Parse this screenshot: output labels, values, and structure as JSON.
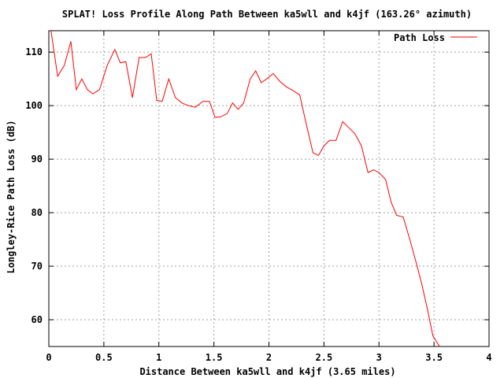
{
  "chart_data": {
    "type": "line",
    "title": "SPLAT! Loss Profile Along Path Between ka5wll and k4jf (163.26° azimuth)",
    "xlabel": "Distance Between ka5wll and k4jf (3.65 miles)",
    "ylabel": "Longley-Rice Path Loss (dB)",
    "xlim": [
      0,
      4
    ],
    "ylim": [
      55,
      114
    ],
    "x_ticks": [
      "0",
      "0.5",
      "1",
      "1.5",
      "2",
      "2.5",
      "3",
      "3.5",
      "4"
    ],
    "x_tick_values": [
      0,
      0.5,
      1,
      1.5,
      2,
      2.5,
      3,
      3.5,
      4
    ],
    "y_ticks": [
      "60",
      "70",
      "80",
      "90",
      "100",
      "110"
    ],
    "y_tick_values": [
      60,
      70,
      80,
      90,
      100,
      110
    ],
    "grid": true,
    "legend_position": "top-right",
    "series": [
      {
        "name": "Path Loss",
        "color": "#ff0000",
        "x": [
          0.02,
          0.08,
          0.14,
          0.2,
          0.25,
          0.3,
          0.35,
          0.4,
          0.46,
          0.53,
          0.6,
          0.65,
          0.7,
          0.76,
          0.82,
          0.88,
          0.93,
          0.98,
          1.03,
          1.09,
          1.15,
          1.21,
          1.27,
          1.33,
          1.4,
          1.46,
          1.51,
          1.56,
          1.62,
          1.67,
          1.72,
          1.77,
          1.83,
          1.88,
          1.93,
          1.98,
          2.04,
          2.1,
          2.16,
          2.22,
          2.28,
          2.34,
          2.4,
          2.45,
          2.5,
          2.55,
          2.61,
          2.67,
          2.72,
          2.78,
          2.84,
          2.9,
          2.95,
          3.0,
          3.06,
          3.11,
          3.16,
          3.22,
          3.28,
          3.34,
          3.39,
          3.44,
          3.49,
          3.55
        ],
        "y": [
          114,
          105.5,
          107.5,
          112,
          103,
          105,
          103,
          102.2,
          103,
          107.5,
          110.5,
          108,
          108.2,
          101.5,
          109,
          109,
          109.7,
          101,
          100.8,
          105,
          101.5,
          100.5,
          100,
          99.7,
          100.8,
          100.8,
          97.8,
          97.9,
          98.5,
          100.5,
          99.3,
          100.5,
          105,
          106.5,
          104.3,
          105,
          106,
          104.5,
          103.5,
          102.8,
          102,
          96.5,
          91.2,
          90.7,
          92.5,
          93.5,
          93.5,
          97,
          96,
          94.8,
          92.5,
          87.5,
          88,
          87.5,
          86.2,
          82,
          79.5,
          79.2,
          75,
          70.5,
          66.5,
          62,
          57,
          55
        ]
      }
    ]
  }
}
